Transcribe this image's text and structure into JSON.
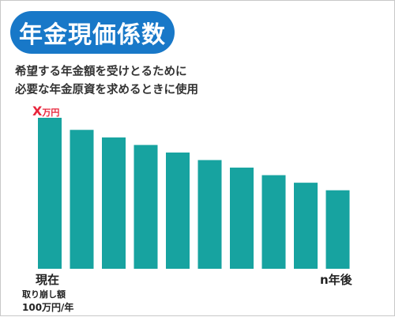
{
  "title": "年金現価係数",
  "subtitle_line1": "希望する年金額を受けとるために",
  "subtitle_line2": "必要な年金原資を求めるときに使用",
  "top_label_main": "X",
  "top_label_unit": "万円",
  "start_label": "現在",
  "withdrawal_label": "取り崩し額",
  "withdrawal_amount": "100万円/年",
  "end_label": "n年後",
  "colors": {
    "title_bg": "#1878c8",
    "bar": "#17a3a0",
    "highlight": "#e8253b"
  },
  "chart_data": {
    "type": "bar",
    "values": [
      100,
      92,
      87,
      82,
      77,
      72,
      67,
      62,
      57,
      52
    ],
    "ylim": [
      0,
      100
    ]
  }
}
